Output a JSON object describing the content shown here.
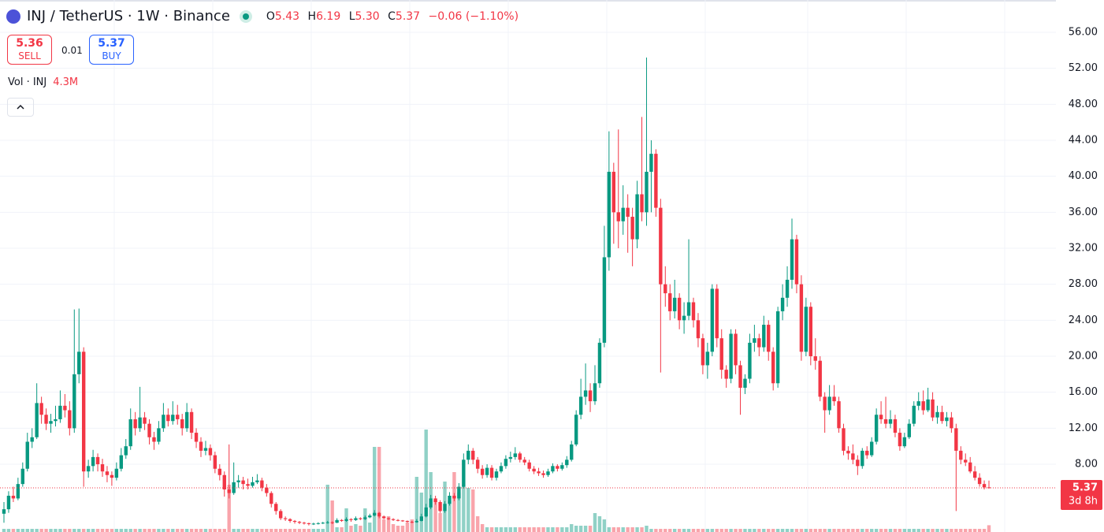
{
  "chart_data": {
    "type": "candlestick",
    "symbol": "INJ / TetherUS · 1W · Binance",
    "legend": {
      "o_label": "O",
      "open": "5.43",
      "h_label": "H",
      "high": "6.19",
      "l_label": "L",
      "low": "5.30",
      "c_label": "C",
      "close": "5.37",
      "change": "−0.06 (−1.10%)"
    },
    "trade": {
      "sell_price": "5.36",
      "sell": "SELL",
      "spread": "0.01",
      "buy_price": "5.37",
      "buy": "BUY"
    },
    "volume_label": "Vol · INJ",
    "volume_value": "4.3M",
    "last_price": {
      "value": 5.37,
      "label": "5.37"
    },
    "countdown": "3d 8h",
    "up_color": "#089981",
    "down_color": "#f23645",
    "grid": true,
    "ylim": [
      0.47,
      59.59
    ],
    "yticks": [
      {
        "value": 8,
        "label": "8.00"
      },
      {
        "value": 12,
        "label": "12.00"
      },
      {
        "value": 16,
        "label": "16.00"
      },
      {
        "value": 20,
        "label": "20.00"
      },
      {
        "value": 24,
        "label": "24.00"
      },
      {
        "value": 28,
        "label": "28.00"
      },
      {
        "value": 32,
        "label": "32.00"
      },
      {
        "value": 36,
        "label": "36.00"
      },
      {
        "value": 40,
        "label": "40.00"
      },
      {
        "value": 44,
        "label": "44.00"
      },
      {
        "value": 48,
        "label": "48.00"
      },
      {
        "value": 52,
        "label": "52.00"
      },
      {
        "value": 56,
        "label": "56.00"
      }
    ],
    "candles": [
      [
        2.5,
        3.8,
        1.5,
        3.0
      ],
      [
        3.0,
        5.0,
        2.6,
        4.5
      ],
      [
        4.5,
        5.5,
        3.8,
        4.2
      ],
      [
        4.2,
        6.5,
        4.0,
        5.8
      ],
      [
        5.8,
        8.2,
        5.5,
        7.5
      ],
      [
        7.5,
        11.5,
        7.2,
        10.5
      ],
      [
        10.5,
        12.0,
        9.8,
        11.0
      ],
      [
        11.0,
        17.0,
        10.8,
        14.8
      ],
      [
        14.8,
        15.5,
        12.5,
        13.5
      ],
      [
        13.5,
        14.2,
        11.8,
        12.5
      ],
      [
        12.5,
        13.6,
        11.5,
        12.8
      ],
      [
        12.8,
        14.5,
        12.2,
        13.0
      ],
      [
        13.0,
        16.2,
        12.6,
        14.5
      ],
      [
        14.5,
        15.8,
        13.2,
        14.0
      ],
      [
        14.0,
        15.0,
        11.2,
        12.0
      ],
      [
        12.0,
        25.2,
        11.5,
        18.0
      ],
      [
        18.0,
        25.3,
        17.0,
        20.5
      ],
      [
        20.5,
        21.0,
        5.5,
        7.2
      ],
      [
        7.2,
        8.5,
        6.5,
        7.8
      ],
      [
        7.8,
        9.6,
        7.2,
        8.8
      ],
      [
        8.8,
        9.2,
        7.2,
        8.0
      ],
      [
        8.0,
        8.6,
        6.6,
        7.2
      ],
      [
        7.2,
        7.8,
        6.0,
        6.8
      ],
      [
        6.8,
        7.2,
        5.6,
        6.5
      ],
      [
        6.5,
        8.2,
        6.2,
        7.5
      ],
      [
        7.5,
        9.8,
        7.2,
        9.0
      ],
      [
        9.0,
        10.8,
        8.6,
        10.0
      ],
      [
        10.0,
        14.2,
        9.6,
        13.0
      ],
      [
        13.0,
        13.8,
        11.2,
        12.0
      ],
      [
        12.0,
        16.6,
        11.6,
        13.2
      ],
      [
        13.2,
        13.8,
        11.8,
        12.5
      ],
      [
        12.5,
        13.0,
        10.2,
        11.0
      ],
      [
        11.0,
        11.6,
        9.6,
        10.5
      ],
      [
        10.5,
        12.8,
        10.2,
        12.0
      ],
      [
        12.0,
        14.8,
        11.6,
        13.5
      ],
      [
        13.5,
        14.2,
        12.2,
        12.8
      ],
      [
        12.8,
        15.0,
        12.4,
        13.5
      ],
      [
        13.5,
        14.6,
        12.4,
        13.0
      ],
      [
        13.0,
        13.6,
        11.2,
        12.0
      ],
      [
        12.0,
        14.8,
        11.6,
        13.8
      ],
      [
        13.8,
        14.2,
        10.8,
        11.5
      ],
      [
        11.5,
        12.0,
        9.8,
        10.5
      ],
      [
        10.5,
        11.0,
        8.8,
        9.5
      ],
      [
        9.5,
        10.6,
        9.0,
        9.8
      ],
      [
        9.8,
        10.2,
        8.4,
        9.0
      ],
      [
        9.0,
        9.4,
        7.0,
        7.5
      ],
      [
        7.5,
        8.0,
        6.2,
        6.8
      ],
      [
        6.8,
        7.2,
        4.4,
        5.2
      ],
      [
        5.2,
        10.2,
        4.2,
        4.8
      ],
      [
        4.8,
        8.2,
        4.6,
        6.0
      ],
      [
        6.0,
        6.8,
        5.4,
        6.2
      ],
      [
        6.2,
        6.6,
        5.2,
        5.8
      ],
      [
        5.8,
        6.4,
        5.2,
        5.6
      ],
      [
        5.6,
        6.6,
        5.4,
        6.0
      ],
      [
        6.0,
        6.9,
        5.8,
        6.2
      ],
      [
        6.2,
        6.5,
        5.0,
        5.4
      ],
      [
        5.4,
        5.8,
        4.4,
        4.8
      ],
      [
        4.8,
        5.0,
        3.2,
        3.6
      ],
      [
        3.6,
        3.8,
        2.4,
        2.8
      ],
      [
        2.8,
        3.0,
        1.8,
        2.0
      ],
      [
        2.0,
        2.2,
        1.7,
        1.9
      ],
      [
        1.9,
        2.0,
        1.5,
        1.7
      ],
      [
        1.7,
        1.8,
        1.4,
        1.6
      ],
      [
        1.6,
        1.7,
        1.35,
        1.5
      ],
      [
        1.5,
        1.6,
        1.3,
        1.45
      ],
      [
        1.45,
        1.5,
        1.2,
        1.35
      ],
      [
        1.35,
        1.5,
        1.25,
        1.4
      ],
      [
        1.4,
        1.55,
        1.3,
        1.45
      ],
      [
        1.45,
        1.6,
        1.35,
        1.5
      ],
      [
        1.5,
        1.7,
        1.4,
        1.55
      ],
      [
        1.55,
        1.65,
        1.35,
        1.5
      ],
      [
        1.5,
        2.0,
        1.45,
        1.8
      ],
      [
        1.8,
        1.9,
        1.6,
        1.7
      ],
      [
        1.7,
        2.1,
        1.6,
        1.9
      ],
      [
        1.9,
        2.0,
        1.6,
        1.8
      ],
      [
        1.8,
        2.2,
        1.7,
        2.0
      ],
      [
        2.0,
        2.1,
        1.8,
        1.9
      ],
      [
        1.9,
        2.3,
        1.8,
        2.1
      ],
      [
        2.1,
        2.5,
        2.0,
        2.3
      ],
      [
        2.3,
        2.9,
        2.2,
        2.6
      ],
      [
        2.6,
        2.7,
        2.0,
        2.2
      ],
      [
        2.2,
        2.3,
        1.9,
        2.0
      ],
      [
        2.0,
        2.1,
        1.8,
        1.9
      ],
      [
        1.9,
        2.0,
        1.7,
        1.8
      ],
      [
        1.8,
        1.9,
        1.65,
        1.75
      ],
      [
        1.75,
        1.8,
        1.6,
        1.7
      ],
      [
        1.7,
        1.75,
        1.5,
        1.6
      ],
      [
        1.6,
        1.7,
        1.45,
        1.55
      ],
      [
        1.55,
        1.9,
        1.5,
        1.7
      ],
      [
        1.7,
        2.5,
        1.65,
        2.2
      ],
      [
        2.2,
        3.6,
        2.1,
        3.2
      ],
      [
        3.2,
        4.6,
        3.0,
        4.2
      ],
      [
        4.2,
        4.5,
        3.5,
        3.8
      ],
      [
        3.8,
        4.0,
        2.6,
        2.8
      ],
      [
        2.8,
        3.9,
        2.6,
        3.6
      ],
      [
        3.6,
        4.9,
        3.4,
        4.5
      ],
      [
        4.5,
        4.8,
        3.9,
        4.2
      ],
      [
        4.2,
        5.9,
        4.0,
        5.5
      ],
      [
        5.5,
        9.2,
        5.3,
        8.5
      ],
      [
        8.5,
        10.2,
        8.0,
        9.5
      ],
      [
        9.5,
        9.8,
        8.0,
        8.5
      ],
      [
        8.5,
        8.8,
        7.0,
        7.5
      ],
      [
        7.5,
        7.9,
        6.4,
        6.8
      ],
      [
        6.8,
        8.0,
        6.5,
        7.6
      ],
      [
        7.6,
        7.9,
        6.2,
        6.5
      ],
      [
        6.5,
        7.5,
        6.2,
        7.2
      ],
      [
        7.2,
        8.2,
        7.0,
        7.8
      ],
      [
        7.8,
        9.0,
        7.5,
        8.6
      ],
      [
        8.6,
        9.4,
        8.2,
        8.8
      ],
      [
        8.8,
        9.9,
        8.5,
        9.2
      ],
      [
        9.2,
        9.4,
        8.2,
        8.5
      ],
      [
        8.5,
        8.8,
        7.9,
        8.2
      ],
      [
        8.2,
        8.5,
        7.2,
        7.5
      ],
      [
        7.5,
        7.8,
        6.9,
        7.2
      ],
      [
        7.2,
        7.6,
        6.7,
        7.0
      ],
      [
        7.0,
        7.3,
        6.5,
        6.8
      ],
      [
        6.8,
        7.5,
        6.6,
        7.2
      ],
      [
        7.2,
        8.1,
        7.0,
        7.8
      ],
      [
        7.8,
        8.0,
        7.2,
        7.5
      ],
      [
        7.5,
        8.2,
        7.3,
        7.9
      ],
      [
        7.9,
        8.9,
        7.6,
        8.5
      ],
      [
        8.5,
        10.6,
        8.3,
        10.2
      ],
      [
        10.2,
        14.0,
        10.0,
        13.5
      ],
      [
        13.5,
        17.5,
        13.0,
        15.5
      ],
      [
        15.5,
        19.2,
        14.6,
        16.2
      ],
      [
        16.2,
        17.0,
        13.8,
        15.0
      ],
      [
        15.0,
        19.0,
        14.6,
        17.0
      ],
      [
        17.0,
        22.0,
        16.5,
        21.5
      ],
      [
        21.5,
        34.5,
        21.0,
        31.0
      ],
      [
        31.0,
        45.0,
        29.5,
        40.5
      ],
      [
        40.5,
        41.5,
        32.5,
        36.0
      ],
      [
        36.0,
        45.2,
        32.0,
        35.0
      ],
      [
        35.0,
        39.0,
        33.5,
        36.5
      ],
      [
        36.5,
        38.0,
        31.5,
        35.5
      ],
      [
        35.5,
        36.5,
        30.0,
        33.0
      ],
      [
        33.0,
        39.5,
        32.0,
        38.0
      ],
      [
        38.0,
        46.6,
        35.0,
        36.0
      ],
      [
        36.0,
        53.2,
        34.5,
        40.5
      ],
      [
        40.5,
        44.0,
        36.0,
        42.5
      ],
      [
        42.5,
        43.0,
        35.5,
        36.5
      ],
      [
        36.5,
        37.5,
        18.2,
        28.0
      ],
      [
        28.0,
        30.0,
        25.5,
        27.0
      ],
      [
        27.0,
        28.0,
        24.0,
        25.0
      ],
      [
        25.0,
        28.5,
        24.2,
        26.5
      ],
      [
        26.5,
        27.0,
        23.0,
        24.0
      ],
      [
        24.0,
        26.0,
        22.5,
        24.5
      ],
      [
        24.5,
        33.0,
        24.0,
        26.0
      ],
      [
        26.0,
        26.5,
        23.2,
        24.0
      ],
      [
        24.0,
        24.8,
        21.0,
        22.0
      ],
      [
        22.0,
        22.5,
        18.0,
        19.0
      ],
      [
        19.0,
        21.5,
        17.5,
        20.5
      ],
      [
        20.5,
        28.0,
        20.0,
        27.5
      ],
      [
        27.5,
        28.0,
        21.0,
        22.0
      ],
      [
        22.0,
        23.0,
        17.5,
        18.5
      ],
      [
        18.5,
        19.0,
        16.5,
        17.5
      ],
      [
        17.5,
        23.0,
        17.0,
        22.5
      ],
      [
        22.5,
        23.0,
        18.0,
        19.0
      ],
      [
        19.0,
        19.5,
        13.5,
        16.5
      ],
      [
        16.5,
        18.0,
        15.8,
        17.5
      ],
      [
        17.5,
        22.5,
        17.0,
        21.5
      ],
      [
        21.5,
        23.5,
        20.5,
        22.0
      ],
      [
        22.0,
        22.5,
        20.0,
        21.0
      ],
      [
        21.0,
        24.5,
        20.5,
        23.5
      ],
      [
        23.5,
        24.0,
        19.5,
        20.5
      ],
      [
        20.5,
        21.0,
        16.2,
        17.0
      ],
      [
        17.0,
        25.5,
        16.5,
        25.0
      ],
      [
        25.0,
        28.0,
        24.0,
        26.5
      ],
      [
        26.5,
        30.0,
        25.5,
        28.5
      ],
      [
        28.5,
        35.3,
        27.5,
        33.0
      ],
      [
        33.0,
        33.5,
        27.0,
        28.0
      ],
      [
        28.0,
        29.0,
        19.5,
        20.5
      ],
      [
        20.5,
        26.5,
        20.0,
        25.5
      ],
      [
        25.5,
        26.0,
        19.0,
        20.0
      ],
      [
        20.0,
        22.0,
        18.5,
        19.5
      ],
      [
        19.5,
        20.0,
        15.0,
        15.5
      ],
      [
        15.5,
        16.0,
        11.5,
        14.0
      ],
      [
        14.0,
        16.8,
        13.5,
        15.5
      ],
      [
        15.5,
        16.8,
        14.5,
        15.0
      ],
      [
        15.0,
        15.5,
        11.5,
        12.0
      ],
      [
        12.0,
        12.5,
        9.0,
        9.5
      ],
      [
        9.5,
        10.0,
        8.5,
        9.2
      ],
      [
        9.2,
        10.2,
        8.0,
        8.5
      ],
      [
        8.5,
        9.0,
        6.8,
        7.8
      ],
      [
        7.8,
        9.8,
        7.5,
        9.5
      ],
      [
        9.5,
        10.0,
        8.6,
        9.0
      ],
      [
        9.0,
        11.0,
        8.8,
        10.5
      ],
      [
        10.5,
        14.2,
        10.2,
        13.5
      ],
      [
        13.5,
        15.0,
        12.5,
        13.0
      ],
      [
        13.0,
        15.5,
        12.0,
        12.5
      ],
      [
        12.5,
        14.0,
        12.0,
        13.0
      ],
      [
        13.0,
        13.5,
        11.0,
        11.5
      ],
      [
        11.5,
        12.0,
        9.5,
        10.0
      ],
      [
        10.0,
        11.5,
        9.8,
        11.0
      ],
      [
        11.0,
        13.0,
        10.8,
        12.5
      ],
      [
        12.5,
        15.0,
        12.2,
        14.5
      ],
      [
        14.5,
        16.0,
        14.0,
        15.0
      ],
      [
        15.0,
        16.2,
        13.5,
        14.0
      ],
      [
        14.0,
        16.5,
        13.8,
        15.2
      ],
      [
        15.2,
        16.0,
        12.8,
        13.2
      ],
      [
        13.2,
        14.5,
        12.5,
        13.8
      ],
      [
        13.8,
        14.5,
        12.5,
        12.8
      ],
      [
        12.8,
        13.8,
        12.2,
        13.2
      ],
      [
        13.2,
        13.8,
        11.5,
        12.0
      ],
      [
        12.0,
        12.5,
        2.8,
        9.5
      ],
      [
        9.5,
        10.0,
        8.0,
        8.5
      ],
      [
        8.5,
        9.2,
        7.8,
        8.2
      ],
      [
        8.2,
        8.8,
        7.0,
        7.2
      ],
      [
        7.2,
        7.8,
        6.2,
        6.5
      ],
      [
        6.5,
        7.0,
        5.5,
        5.8
      ],
      [
        5.8,
        6.2,
        5.2,
        5.43
      ],
      [
        5.43,
        6.19,
        5.3,
        5.37
      ]
    ],
    "volume": [
      2,
      2,
      2,
      2,
      2,
      2,
      2,
      2,
      2,
      2,
      2,
      2,
      2,
      2,
      2,
      2,
      2,
      2,
      2,
      2,
      2,
      2,
      2,
      2,
      2,
      2,
      2,
      2,
      2,
      2,
      2,
      2,
      2,
      2,
      2,
      2,
      2,
      2,
      2,
      2,
      2,
      2,
      2,
      2,
      2,
      2,
      2,
      2,
      30,
      2,
      2,
      2,
      2,
      2,
      2,
      2,
      2,
      2,
      2,
      2,
      2,
      2,
      2,
      2,
      2,
      2,
      2,
      2,
      2,
      30,
      20,
      3,
      3,
      15,
      4,
      5,
      4,
      15,
      6,
      54,
      54,
      8,
      10,
      5,
      4,
      4,
      6,
      8,
      35,
      25,
      65,
      38,
      20,
      12,
      32,
      20,
      38,
      25,
      30,
      28,
      27,
      10,
      5,
      3,
      3,
      3,
      3,
      3,
      3,
      3,
      3,
      3,
      3,
      3,
      3,
      3,
      3,
      3,
      3,
      3,
      3,
      5,
      4,
      4,
      4,
      4,
      12,
      10,
      8,
      3,
      3,
      3,
      3,
      3,
      3,
      3,
      3,
      4,
      2,
      2,
      2,
      2,
      2,
      2,
      2,
      2,
      2,
      2,
      2,
      2,
      2,
      2,
      2,
      2,
      2,
      2,
      2,
      2,
      2,
      2,
      2,
      2,
      2,
      2,
      2,
      2,
      2,
      2,
      2,
      2,
      2,
      2,
      2,
      2,
      2,
      2,
      2,
      2,
      2,
      2,
      2,
      2,
      2,
      2,
      2,
      2,
      2,
      2,
      2,
      2,
      2,
      2,
      2,
      2,
      2,
      2,
      2,
      2,
      2,
      2,
      2,
      2,
      2,
      2,
      2,
      2,
      2,
      2,
      2,
      2,
      4.3
    ]
  }
}
